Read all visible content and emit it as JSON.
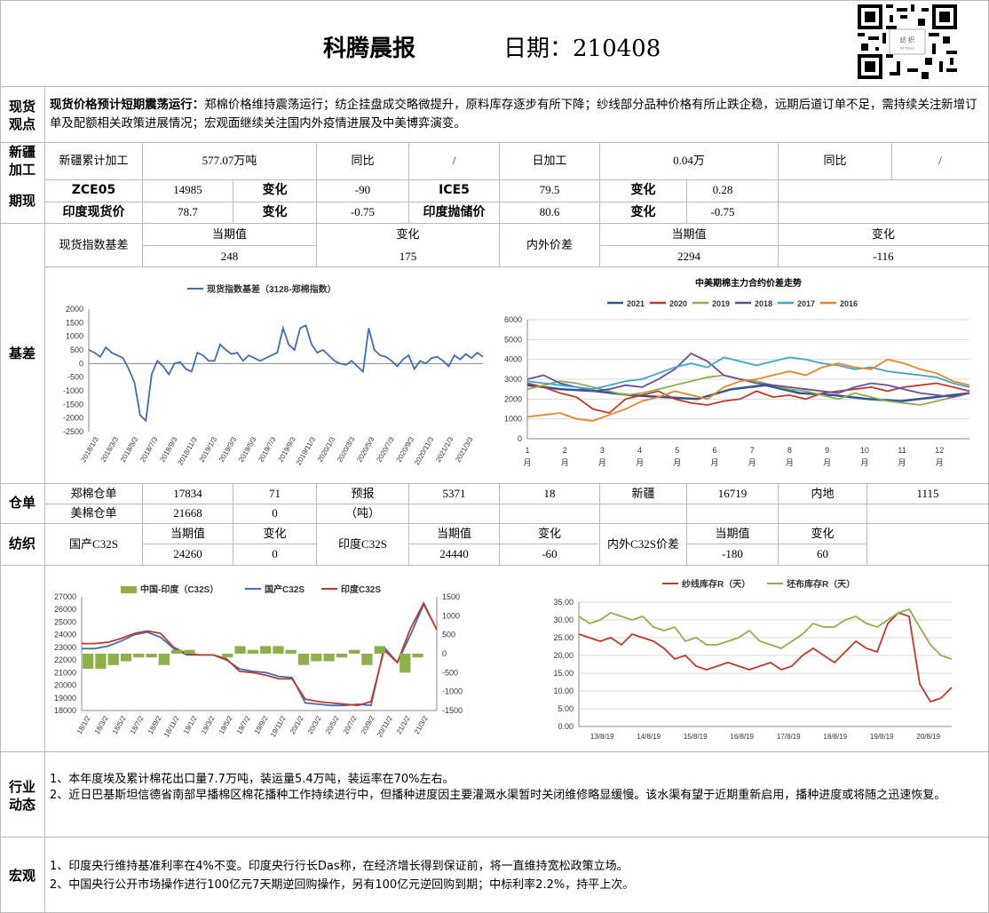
{
  "header": {
    "title": "科腾晨报",
    "date_label": "日期：210408"
  },
  "sections": {
    "spot": "现货\n观点",
    "xinjiang": "新疆\n加工",
    "futures": "期现",
    "basis": "基差",
    "warehouse": "仓单",
    "textile": "纺织",
    "industry": "行业\n动态",
    "macro": "宏观"
  },
  "spot_view": {
    "title": "现货价格预计短期震荡运行：",
    "text": "郑棉价格维持震荡运行；纺企挂盘成交略微提升，原料库存逐步有所下降；纱线部分品种价格有所止跌企稳，远期后道订单不足，需持续关注新增订单及配额相关政策进展情况；宏观面继续关注国内外疫情进展及中美博弈演变。"
  },
  "xinjiang": [
    "新疆累计加工",
    "577.07万吨",
    "同比",
    "/",
    "日加工",
    "0.04万",
    "同比",
    "/"
  ],
  "futures": [
    [
      "ZCE05",
      "14985",
      "变化",
      "-90",
      "ICE5",
      "79.5",
      "变化",
      "0.28"
    ],
    [
      "印度现货价",
      "78.7",
      "变化",
      "-0.75",
      "印度抛储价",
      "80.6",
      "变化",
      "-0.75"
    ]
  ],
  "basis_table": {
    "r1": [
      "现货指数基差",
      "当期值",
      "变化",
      "内外价差",
      "当期值",
      "变化"
    ],
    "r2": [
      "248",
      "175",
      "2294",
      "-116"
    ]
  },
  "warehouse": [
    [
      "郑棉仓单",
      "17834",
      "71",
      "预报",
      "5371",
      "18",
      "新疆",
      "16719",
      "内地",
      "1115"
    ],
    [
      "美棉仓单",
      "21668",
      "0",
      "（吨）"
    ]
  ],
  "textile": {
    "r1": [
      "国产C32S",
      "当期值",
      "变化",
      "印度C32S",
      "当期值",
      "变化",
      "内外C32S价差",
      "当期值",
      "变化"
    ],
    "r2": [
      "24260",
      "0",
      "24440",
      "-60",
      "-180",
      "60"
    ]
  },
  "industry": [
    "1、本年度埃及累计棉花出口量7.7万吨，装运量5.4万吨，装运率在70%左右。",
    "2、近日巴基斯坦信德省南部早播棉区棉花播种工作持续进行中，但播种进度因主要灌溉水渠暂时关闭维修略显缓慢。该水渠有望于近期重新启用，播种进度或将随之迅速恢复。"
  ],
  "macro": [
    "1、印度央行维持基准利率在4%不变。印度央行行长Das称，在经济增长得到保证前，将一直维持宽松政策立场。",
    "2、中国央行公开市场操作进行100亿元7天期逆回购操作，另有100亿元逆回购到期；中标利率2.2%，持平上次。"
  ],
  "chart_data": [
    {
      "type": "line",
      "title": "",
      "legend": [
        "现货指数基差（3128-郑棉指数）"
      ],
      "colors": [
        "#3F6DB3"
      ],
      "yticks": [
        "2000",
        "1500",
        "1000",
        "500",
        "0",
        "-500",
        "-1000",
        "-1500",
        "-2000",
        "-2500"
      ],
      "ylim": [
        -2500,
        2000
      ],
      "xticks": [
        "2018/1/3",
        "2018/3/3",
        "2018/5/3",
        "2018/7/3",
        "2018/9/3",
        "2018/11/3",
        "2019/1/3",
        "2019/3/3",
        "2019/5/3",
        "2019/7/3",
        "2019/9/3",
        "2019/11/3",
        "2020/1/3",
        "2020/3/3",
        "2020/5/3",
        "2020/7/3",
        "2020/9/3",
        "2020/11/3",
        "2021/1/3",
        "2021/3/3"
      ],
      "values": [
        500,
        400,
        250,
        600,
        400,
        300,
        200,
        -200,
        -700,
        -1900,
        -2100,
        -400,
        100,
        -100,
        -400,
        0,
        50,
        -200,
        -300,
        400,
        300,
        100,
        100,
        700,
        500,
        350,
        400,
        100,
        300,
        200,
        100,
        200,
        300,
        400,
        1300,
        700,
        500,
        1300,
        1400,
        700,
        400,
        500,
        300,
        100,
        0,
        -50,
        100,
        -100,
        -300,
        1300,
        500,
        300,
        250,
        100,
        -100,
        150,
        300,
        -200,
        100,
        0,
        200,
        250,
        100,
        -100,
        300,
        150,
        350,
        200,
        400,
        250
      ]
    },
    {
      "type": "line",
      "title": "中美期棉主力合约价差走势",
      "legend": [
        "2021",
        "2020",
        "2019",
        "2018",
        "2017",
        "2016"
      ],
      "colors": [
        "#2F5597",
        "#C0392B",
        "#8DB04A",
        "#6A4C9C",
        "#3AA7C6",
        "#E8852B"
      ],
      "yticks": [
        "6000",
        "5000",
        "4000",
        "3000",
        "2000",
        "1000",
        "0"
      ],
      "ylim": [
        0,
        6000
      ],
      "xticks": [
        "1月",
        "2月",
        "3月",
        "4月",
        "5月",
        "6月",
        "7月",
        "8月",
        "9月",
        "10月",
        "11月",
        "12月"
      ],
      "series": [
        {
          "name": "2021",
          "values": [
            2700,
            2500,
            2400,
            2200,
            2100,
            2000,
            2500,
            2700,
            2300,
            2200,
            2000,
            1900,
            2100,
            2300
          ]
        },
        {
          "name": "2020",
          "values": [
            2800,
            2600,
            2300,
            2100,
            1500,
            1300,
            2000,
            2200,
            2400,
            2000,
            1800,
            1700,
            1900,
            2000,
            2400,
            2100,
            2200,
            2000,
            2300,
            2400,
            2500,
            2600,
            2400,
            2600,
            2700,
            2800,
            2600,
            2400
          ]
        },
        {
          "name": "2019",
          "values": [
            2500,
            2700,
            2900,
            2800,
            2600,
            2400,
            2200,
            2300,
            2500,
            2700,
            2900,
            3100,
            3200,
            3000,
            2900,
            2700,
            2500,
            2400,
            2200,
            2000,
            2300,
            2100,
            1900,
            1800,
            1700,
            1900,
            2100,
            2300
          ]
        },
        {
          "name": "2018",
          "values": [
            3000,
            3200,
            2800,
            2600,
            2400,
            2500,
            2700,
            2600,
            3000,
            3500,
            4300,
            3900,
            3200,
            3000,
            2800,
            2700,
            2600,
            2500,
            2400,
            2300,
            2600,
            2800,
            2700,
            2500,
            2300,
            2200,
            2100,
            2300
          ]
        },
        {
          "name": "2017",
          "values": [
            2900,
            2800,
            2700,
            2600,
            2500,
            2700,
            2900,
            3000,
            3300,
            3600,
            3800,
            3600,
            4100,
            3900,
            3700,
            3900,
            4100,
            4000,
            3800,
            3700,
            3500,
            3600,
            3400,
            3300,
            3200,
            3100,
            2800,
            2600
          ]
        },
        {
          "name": "2016",
          "values": [
            1100,
            1200,
            1300,
            1000,
            900,
            1200,
            1500,
            1900,
            2100,
            2400,
            2200,
            2000,
            2600,
            2900,
            3000,
            3200,
            3400,
            3200,
            3600,
            3800,
            3600,
            3500,
            4000,
            3800,
            3500,
            3300,
            2900,
            2700
          ]
        }
      ]
    },
    {
      "type": "line",
      "title": "",
      "legend": [
        "中国-印度（C32S）",
        "国产C32S",
        "印度C32S"
      ],
      "colors": [
        "#8DB04A",
        "#3F6DB3",
        "#C0392B"
      ],
      "yticks": [
        "27000",
        "26000",
        "25000",
        "24000",
        "23000",
        "22000",
        "21000",
        "20000",
        "19000",
        "18000"
      ],
      "ylim": [
        18000,
        27000
      ],
      "y2ticks": [
        "1500",
        "1000",
        "500",
        "0",
        "-500",
        "-1000",
        "-1500"
      ],
      "y2lim": [
        -1500,
        1500
      ],
      "xticks": [
        "18/1/2",
        "18/3/2",
        "18/5/2",
        "18/7/2",
        "18/9/2",
        "18/11/2",
        "19/1/2",
        "19/3/2",
        "19/5/2",
        "19/7/2",
        "19/9/2",
        "19/11/2",
        "20/1/2",
        "20/3/2",
        "20/5/2",
        "20/7/2",
        "20/9/2",
        "20/11/2",
        "21/1/2",
        "21/3/2"
      ],
      "series": [
        {
          "name": "国产C32S",
          "values": [
            22900,
            22900,
            23100,
            23500,
            24000,
            24200,
            23800,
            22900,
            22400,
            22400,
            22400,
            22000,
            21300,
            21100,
            21000,
            20700,
            20600,
            18600,
            18500,
            18400,
            18400,
            18500,
            18400,
            23000,
            21800,
            24000,
            26400,
            24400
          ]
        },
        {
          "name": "印度C32S",
          "values": [
            23300,
            23300,
            23400,
            23700,
            24100,
            24300,
            24100,
            23000,
            22500,
            22400,
            22400,
            22100,
            21100,
            21000,
            20800,
            20500,
            20500,
            18900,
            18700,
            18600,
            18500,
            18400,
            18700,
            22800,
            21800,
            24500,
            26500,
            24400
          ]
        },
        {
          "name": "中国-印度（C32S）",
          "values": [
            -400,
            -400,
            -300,
            -200,
            -100,
            -100,
            -300,
            100,
            100,
            0,
            0,
            -100,
            200,
            100,
            200,
            200,
            100,
            -300,
            -200,
            -200,
            -100,
            100,
            -300,
            200,
            0,
            -500,
            -100,
            0
          ]
        }
      ]
    },
    {
      "type": "line",
      "title": "",
      "legend": [
        "纱线库存R（天）",
        "坯布库存R（天）"
      ],
      "colors": [
        "#C0392B",
        "#8DB04A"
      ],
      "yticks": [
        "35.00",
        "30.00",
        "25.00",
        "20.00",
        "15.00",
        "10.00",
        "5.00",
        "0.00"
      ],
      "ylim": [
        0,
        35
      ],
      "xticks": [
        "13/8/19",
        "14/8/19",
        "15/8/19",
        "16/8/19",
        "17/8/19",
        "18/8/19",
        "19/8/19",
        "20/8/19"
      ],
      "series": [
        {
          "name": "纱线库存R（天）",
          "values": [
            26,
            25,
            24,
            25,
            23,
            26,
            25,
            24,
            22,
            19,
            20,
            17,
            16,
            17,
            18,
            17,
            16,
            17,
            18,
            16,
            17,
            20,
            22,
            20,
            18,
            21,
            24,
            22,
            21,
            29,
            32,
            31,
            12,
            7,
            8,
            11
          ]
        },
        {
          "name": "坯布库存R（天）",
          "values": [
            31,
            29,
            30,
            32,
            31,
            30,
            31,
            28,
            27,
            28,
            24,
            25,
            23,
            23,
            24,
            25,
            27,
            24,
            23,
            22,
            24,
            26,
            29,
            28,
            28,
            30,
            31,
            29,
            28,
            30,
            32,
            33,
            28,
            23,
            20,
            19
          ]
        }
      ]
    }
  ]
}
